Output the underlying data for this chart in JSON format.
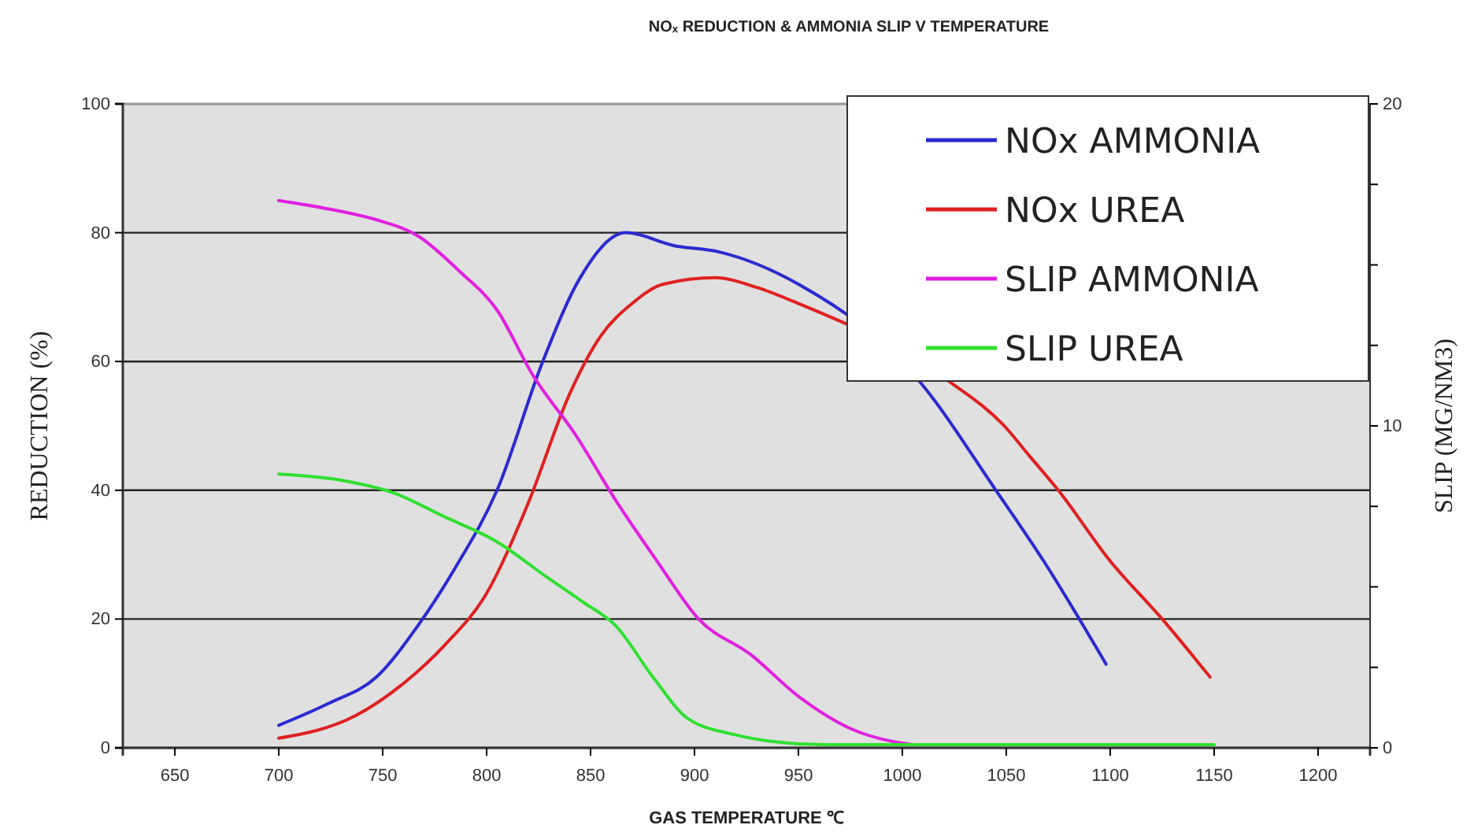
{
  "chart_data": {
    "type": "line",
    "title": "NOₓ REDUCTION & AMMONIA SLIP V TEMPERATURE",
    "xlabel": "GAS TEMPERATURE ℃",
    "ylabel": "REDUCTION (%)",
    "y2label": "SLIP (MG/NM3)",
    "xlim": [
      625,
      1225
    ],
    "xticks": [
      650,
      700,
      750,
      800,
      850,
      900,
      950,
      1000,
      1050,
      1100,
      1150,
      1200
    ],
    "ylim": [
      0,
      100
    ],
    "yticks": [
      0,
      20,
      40,
      60,
      80,
      100
    ],
    "y2lim": [
      0,
      20
    ],
    "y2ticks": [
      0,
      {
        "value": 2.5,
        "label": null
      },
      {
        "value": 5,
        "label": null
      },
      {
        "value": 7.5,
        "label": null
      },
      10,
      {
        "value": 12.5,
        "label": null
      },
      {
        "value": 15,
        "label": null
      },
      {
        "value": 17.5,
        "label": null
      },
      20
    ],
    "grid": "y",
    "legend": "top right",
    "marker": "none",
    "line_style": "solid",
    "series": [
      {
        "name": "NOx AMMONIA",
        "color": "#2b2bd0",
        "x": [
          700,
          724,
          747,
          767,
          785,
          805,
          827,
          845,
          867,
          890,
          912,
          950,
          1008,
          1045,
          1068,
          1098
        ],
        "values": [
          3.5,
          6.9,
          11,
          19,
          28,
          40,
          60,
          73,
          80,
          78,
          77,
          72,
          57,
          40,
          29,
          13
        ]
      },
      {
        "name": "NOx UREA",
        "color": "#e02020",
        "x": [
          700,
          737,
          760,
          780,
          800,
          820,
          840,
          855,
          870,
          885,
          910,
          930,
          950,
          1022,
          1049,
          1062,
          1075,
          1100,
          1125,
          1148
        ],
        "values": [
          1.5,
          5,
          10,
          16,
          24,
          38,
          55,
          64,
          69,
          72,
          73,
          71.5,
          69,
          57,
          50,
          45,
          40,
          29,
          20,
          11
        ]
      },
      {
        "name": "SLIP AMMONIA",
        "color": "#e020e0",
        "axis": "y2",
        "x": [
          700,
          727,
          747,
          767,
          787,
          805,
          822,
          843,
          862,
          882,
          902,
          927,
          950,
          975,
          995,
          1005
        ],
        "values": [
          17,
          16.7,
          16.4,
          15.9,
          14.8,
          13.6,
          11.6,
          9.7,
          7.7,
          5.8,
          4,
          2.9,
          1.6,
          0.6,
          0.2,
          0.1
        ]
      },
      {
        "name": "SLIP UREA",
        "color": "#30e030",
        "axis": "y2",
        "x": [
          700,
          731,
          756,
          779,
          805,
          829,
          847,
          862,
          880,
          897,
          920,
          937,
          962,
          1000,
          1150
        ],
        "values": [
          8.5,
          8.3,
          7.9,
          7.2,
          6.4,
          5.3,
          4.5,
          3.8,
          2.2,
          0.9,
          0.4,
          0.2,
          0.1,
          0.1,
          0.1
        ]
      }
    ]
  }
}
